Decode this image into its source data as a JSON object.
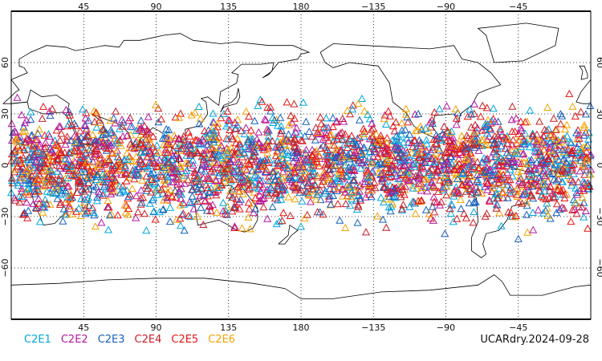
{
  "chart_data": {
    "type": "scatter",
    "projection": "equirectangular (cylindrical)",
    "lon_range": [
      0,
      360
    ],
    "lat_range": [
      -90,
      90
    ],
    "grid": true,
    "legend_placement": "bottom-left",
    "x_ticks": [
      {
        "lon": 45,
        "label": "45"
      },
      {
        "lon": 90,
        "label": "90"
      },
      {
        "lon": 135,
        "label": "135"
      },
      {
        "lon": 180,
        "label": "180"
      },
      {
        "lon": 225,
        "label": "−135"
      },
      {
        "lon": 270,
        "label": "−90"
      },
      {
        "lon": 315,
        "label": "−45"
      }
    ],
    "y_ticks": [
      {
        "lat": 60,
        "label": "60"
      },
      {
        "lat": 30,
        "label": "30"
      },
      {
        "lat": 0,
        "label": "0"
      },
      {
        "lat": -30,
        "label": "−30"
      },
      {
        "lat": -60,
        "label": "−60"
      }
    ],
    "marker": "triangle",
    "series": [
      {
        "name": "C2E1",
        "color": "#00a7e0"
      },
      {
        "name": "C2E2",
        "color": "#b5179e"
      },
      {
        "name": "C2E3",
        "color": "#1560bd"
      },
      {
        "name": "C2E4",
        "color": "#c81d25"
      },
      {
        "name": "C2E5",
        "color": "#e81414"
      },
      {
        "name": "C2E6",
        "color": "#f5a300"
      }
    ],
    "point_distribution": {
      "lat_min": -45,
      "lat_max": 45,
      "lon_min": 0,
      "lon_max": 360,
      "approx_points_shown": 3000
    }
  },
  "footer": {
    "stamp": "UCARdry.2024-09-28"
  },
  "colors": {
    "frame": "#000000",
    "coastline": "#000000",
    "grid": "#000000",
    "background": "#ffffff"
  }
}
